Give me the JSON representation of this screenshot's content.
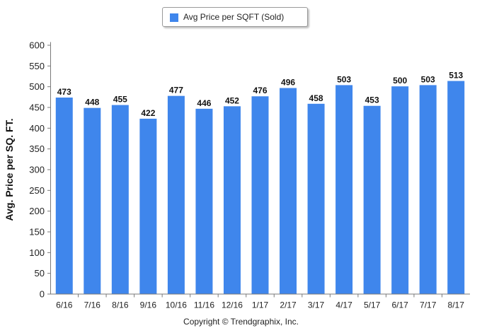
{
  "chart_data": {
    "type": "bar",
    "categories": [
      "6/16",
      "7/16",
      "8/16",
      "9/16",
      "10/16",
      "11/16",
      "12/16",
      "1/17",
      "2/17",
      "3/17",
      "4/17",
      "5/17",
      "6/17",
      "7/17",
      "8/17"
    ],
    "series": [
      {
        "name": "Avg Price per SQFT (Sold)",
        "values": [
          473,
          448,
          455,
          422,
          477,
          446,
          452,
          476,
          496,
          458,
          503,
          453,
          500,
          503,
          513
        ]
      }
    ],
    "ylabel": "Avg. Price per SQ. FT.",
    "xlabel": "",
    "ylim": [
      0,
      600
    ],
    "yticks": [
      0,
      50,
      100,
      150,
      200,
      250,
      300,
      350,
      400,
      450,
      500,
      550,
      600
    ],
    "grid": false,
    "legend_position": "top-center",
    "bar_color": "#3f86ec"
  },
  "footer": {
    "copyright": "Copyright © Trendgraphix, Inc."
  }
}
